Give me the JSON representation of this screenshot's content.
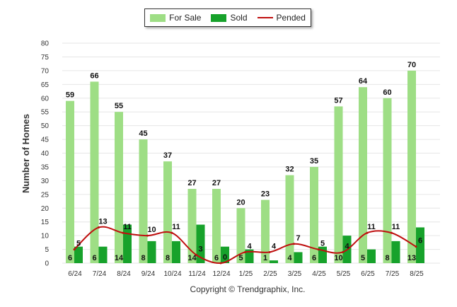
{
  "legend": {
    "for_sale": "For Sale",
    "sold": "Sold",
    "pended": "Pended"
  },
  "copyright": "Copyright © Trendgraphix, Inc.",
  "colors": {
    "for_sale": "#9ede85",
    "sold": "#17a22b",
    "pended": "#bf0f0f",
    "grid": "#e6e6e6"
  },
  "chart_data": {
    "type": "bar",
    "categories": [
      "6/24",
      "7/24",
      "8/24",
      "9/24",
      "10/24",
      "11/24",
      "12/24",
      "1/25",
      "2/25",
      "3/25",
      "4/25",
      "5/25",
      "6/25",
      "7/25",
      "8/25"
    ],
    "series": [
      {
        "name": "For Sale",
        "type": "bar",
        "values": [
          59,
          66,
          55,
          45,
          37,
          27,
          27,
          20,
          23,
          32,
          35,
          57,
          64,
          60,
          70
        ]
      },
      {
        "name": "Sold",
        "type": "bar",
        "values": [
          6,
          6,
          14,
          8,
          8,
          14,
          6,
          5,
          1,
          4,
          6,
          10,
          5,
          8,
          13
        ]
      },
      {
        "name": "Pended",
        "type": "line",
        "values": [
          5,
          13,
          11,
          10,
          11,
          3,
          0,
          4,
          4,
          7,
          5,
          4,
          11,
          11,
          6
        ]
      }
    ],
    "ylabel": "Number of Homes",
    "ylim": [
      0,
      80
    ],
    "yticks": [
      0,
      5,
      10,
      15,
      20,
      25,
      30,
      35,
      40,
      45,
      50,
      55,
      60,
      65,
      70,
      75,
      80
    ],
    "grid": true,
    "legend_position": "top-center"
  }
}
